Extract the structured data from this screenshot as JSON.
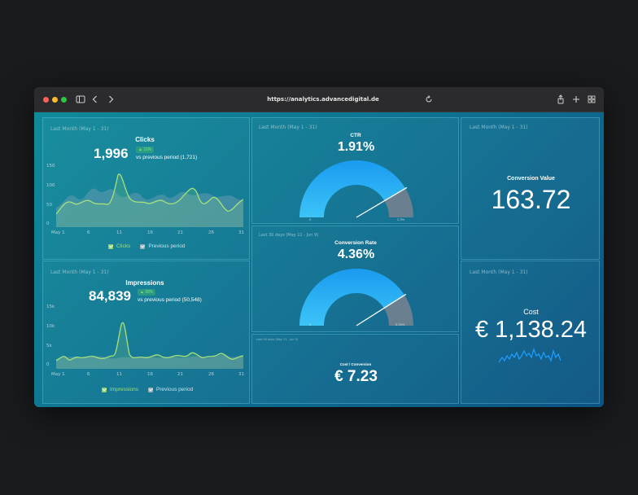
{
  "browser": {
    "url": "https://analytics.advancedigital.de"
  },
  "clicks": {
    "period": "Last Month (May 1 - 31)",
    "title": "Clicks",
    "value": "1,996",
    "badge": "▲ 16%",
    "vs": "vs previous period (1,721)",
    "yticks": [
      "150",
      "100",
      "50",
      "0"
    ],
    "xticks": [
      "May 1",
      "6",
      "11",
      "16",
      "21",
      "26",
      "31"
    ],
    "legend_current": "Clicks",
    "legend_previous": "Previous period"
  },
  "impressions": {
    "period": "Last Month (May 1 - 31)",
    "title": "Impressions",
    "value": "84,839",
    "badge": "▲ 68%",
    "vs": "vs previous period (50,548)",
    "yticks": [
      "15k",
      "10k",
      "5k",
      "0"
    ],
    "xticks": [
      "May 1",
      "6",
      "11",
      "16",
      "21",
      "26",
      "31"
    ],
    "legend_current": "Impressions",
    "legend_previous": "Previous period"
  },
  "ctr": {
    "period": "Last Month (May 1 - 31)",
    "title": "CTR",
    "value": "1.91%",
    "min": "0",
    "max": "2.3%",
    "fraction": 0.83
  },
  "conversion_rate": {
    "period": "Last 30 days (May 11 - Jun 9)",
    "title": "Conversion Rate",
    "value": "4.36%",
    "min": "0",
    "max": "5.33%",
    "fraction": 0.82
  },
  "cost_conversion": {
    "period": "Last 30 days (May 11 - Jun 9)",
    "title": "Cost / Conversion",
    "value": "€ 7.23"
  },
  "conversion_value": {
    "period": "Last Month (May 1 - 31)",
    "title": "Conversion Value",
    "value": "163.72"
  },
  "cost": {
    "period": "Last Month (May 1 - 31)",
    "title": "Cost",
    "value": "€ 1,138.24"
  },
  "colors": {
    "gauge_fill": "#1a9bf0",
    "gauge_rest": "#6a7f8f",
    "line_green": "#a6e27a",
    "sparkline": "#1ea0ff"
  }
}
